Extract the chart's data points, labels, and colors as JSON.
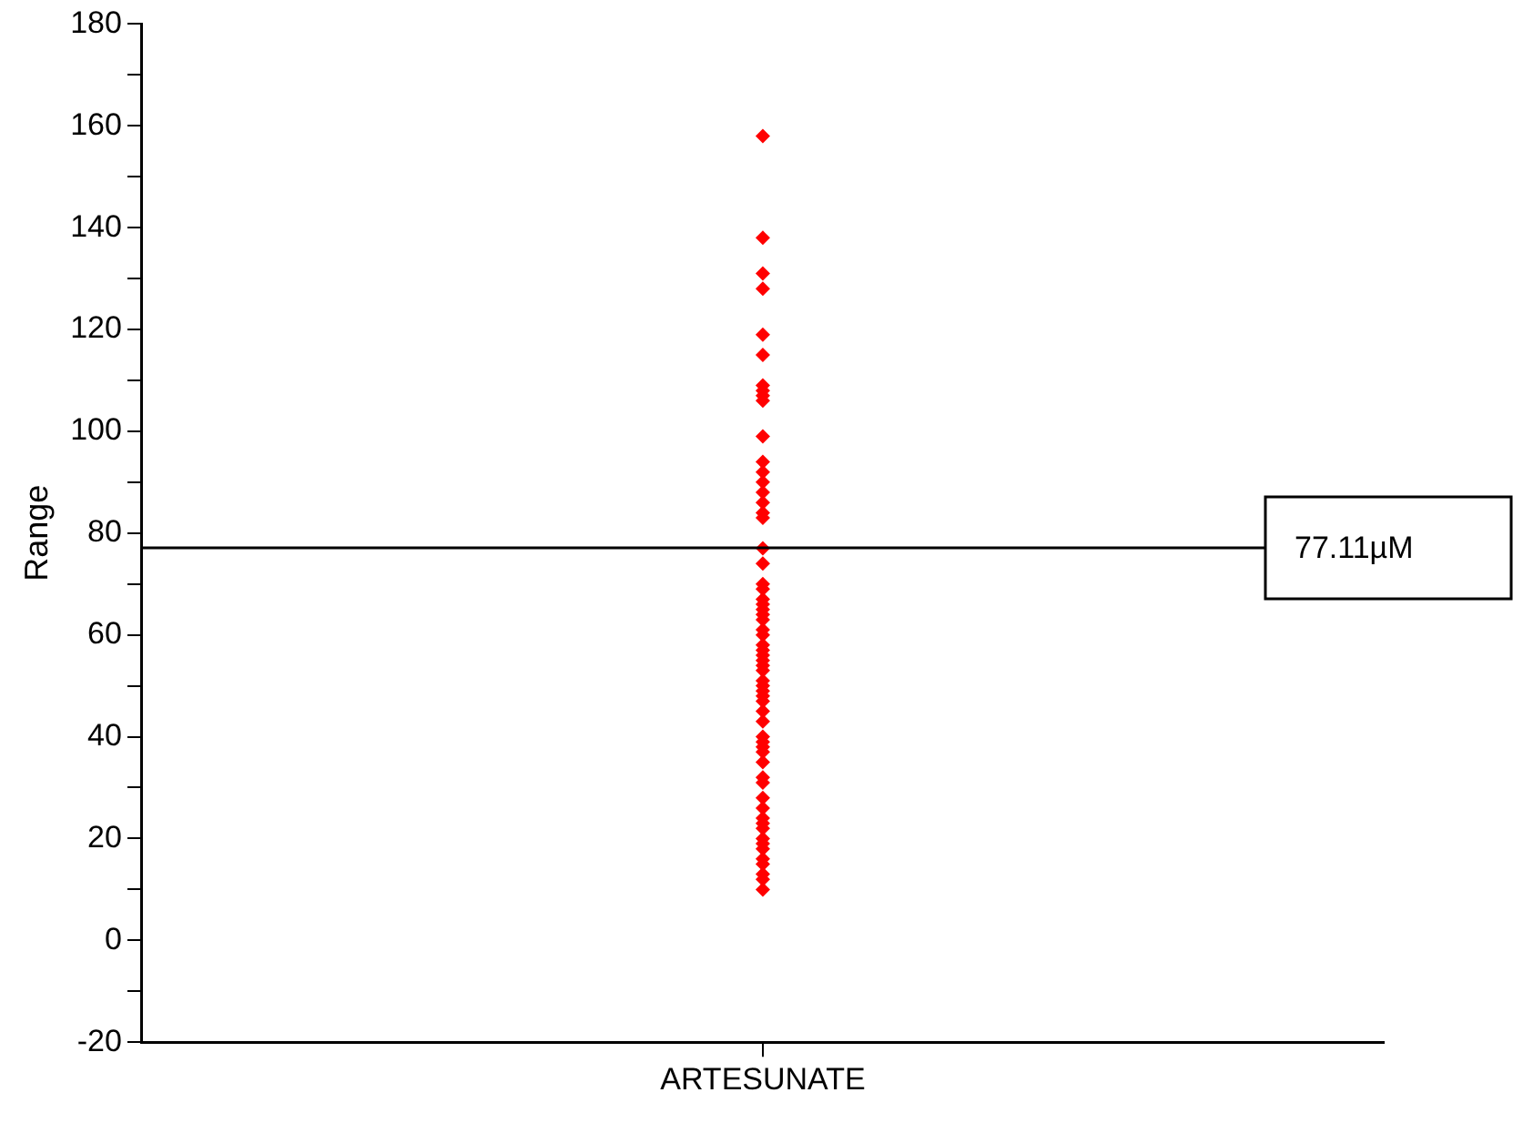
{
  "chart_data": {
    "type": "scatter",
    "ylabel": "Range",
    "marker": "diamond",
    "grid": false,
    "legend": false,
    "categories": [
      "ARTESUNATE"
    ],
    "ylim": [
      -20,
      180
    ],
    "yticks": [
      -20,
      {
        "value": -10,
        "label": null
      },
      0,
      {
        "value": 10,
        "label": null
      },
      20,
      {
        "value": 30,
        "label": null
      },
      40,
      {
        "value": 50,
        "label": null
      },
      60,
      {
        "value": 70,
        "label": null
      },
      80,
      {
        "value": 90,
        "label": null
      },
      100,
      {
        "value": 110,
        "label": null
      },
      120,
      {
        "value": 130,
        "label": null
      },
      140,
      {
        "value": 150,
        "label": null
      },
      160,
      {
        "value": 170,
        "label": null
      },
      180
    ],
    "ref_lines": [
      {
        "axis": "y",
        "value": 77.11,
        "label": "77.11µM",
        "color": "#000000"
      }
    ],
    "series": [
      {
        "color": "#ff0000",
        "x": [
          "ARTESUNATE",
          "ARTESUNATE",
          "ARTESUNATE",
          "ARTESUNATE",
          "ARTESUNATE",
          "ARTESUNATE",
          "ARTESUNATE",
          "ARTESUNATE",
          "ARTESUNATE",
          "ARTESUNATE",
          "ARTESUNATE",
          "ARTESUNATE",
          "ARTESUNATE",
          "ARTESUNATE",
          "ARTESUNATE",
          "ARTESUNATE",
          "ARTESUNATE",
          "ARTESUNATE",
          "ARTESUNATE",
          "ARTESUNATE",
          "ARTESUNATE",
          "ARTESUNATE",
          "ARTESUNATE",
          "ARTESUNATE",
          "ARTESUNATE",
          "ARTESUNATE",
          "ARTESUNATE",
          "ARTESUNATE",
          "ARTESUNATE",
          "ARTESUNATE",
          "ARTESUNATE",
          "ARTESUNATE",
          "ARTESUNATE",
          "ARTESUNATE",
          "ARTESUNATE",
          "ARTESUNATE",
          "ARTESUNATE",
          "ARTESUNATE",
          "ARTESUNATE",
          "ARTESUNATE",
          "ARTESUNATE",
          "ARTESUNATE",
          "ARTESUNATE",
          "ARTESUNATE",
          "ARTESUNATE",
          "ARTESUNATE",
          "ARTESUNATE",
          "ARTESUNATE",
          "ARTESUNATE",
          "ARTESUNATE",
          "ARTESUNATE",
          "ARTESUNATE",
          "ARTESUNATE",
          "ARTESUNATE",
          "ARTESUNATE",
          "ARTESUNATE",
          "ARTESUNATE",
          "ARTESUNATE",
          "ARTESUNATE",
          "ARTESUNATE",
          "ARTESUNATE",
          "ARTESUNATE"
        ],
        "values": [
          158,
          138,
          131,
          128,
          119,
          115,
          108,
          109,
          107,
          106,
          99,
          94,
          90,
          92,
          88,
          86,
          84,
          83,
          77,
          74,
          70,
          67,
          65,
          63,
          69,
          66,
          64,
          61,
          60,
          58,
          56,
          57,
          55,
          53,
          54,
          51,
          50,
          49,
          48,
          47,
          45,
          43,
          39,
          40,
          37,
          38,
          35,
          32,
          31,
          26,
          28,
          24,
          23,
          22,
          20,
          19,
          18,
          16,
          13,
          12,
          10,
          15
        ]
      }
    ]
  }
}
